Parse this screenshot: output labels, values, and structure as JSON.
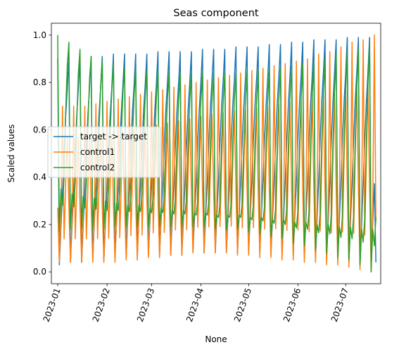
{
  "chart_data": {
    "type": "line",
    "title": "Seas component",
    "xlabel": "None",
    "ylabel": "Scaled values",
    "xlim": [
      "2022-12-28",
      "2023-07-23"
    ],
    "ylim": [
      -0.05,
      1.05
    ],
    "x_ticks": [
      "2023-01",
      "2023-02",
      "2023-03",
      "2023-04",
      "2023-05",
      "2023-06",
      "2023-07"
    ],
    "x_tick_dates": [
      "2023-01-01",
      "2023-02-01",
      "2023-03-01",
      "2023-04-01",
      "2023-05-01",
      "2023-06-01",
      "2023-07-01"
    ],
    "y_ticks": [
      "0.0",
      "0.2",
      "0.4",
      "0.6",
      "0.8",
      "1.0"
    ],
    "y_tick_values": [
      0.0,
      0.2,
      0.4,
      0.6,
      0.8,
      1.0
    ],
    "grid": false,
    "legend_position": "center-left",
    "x_start": "2023-01-01",
    "x_end": "2023-07-20",
    "period_days": 7,
    "series": [
      {
        "name": "target -> target",
        "color": "#1f77b4",
        "peaks": [
          0.9,
          0.91,
          0.91,
          0.91,
          0.91,
          0.92,
          0.92,
          0.92,
          0.92,
          0.93,
          0.93,
          0.93,
          0.93,
          0.94,
          0.94,
          0.94,
          0.95,
          0.95,
          0.95,
          0.96,
          0.96,
          0.97,
          0.97,
          0.98,
          0.98,
          0.98,
          0.99,
          0.99,
          0.99
        ],
        "troughs": [
          0.03,
          0.04,
          0.04,
          0.05,
          0.05,
          0.06,
          0.06,
          0.07,
          0.07,
          0.07,
          0.07,
          0.07,
          0.08,
          0.08,
          0.08,
          0.08,
          0.08,
          0.08,
          0.08,
          0.07,
          0.07,
          0.07,
          0.06,
          0.06,
          0.05,
          0.05,
          0.04,
          0.03,
          0.04
        ],
        "end_value": 0.04
      },
      {
        "name": "control1",
        "color": "#ff7f0e",
        "peaks": [
          0.7,
          0.7,
          0.7,
          0.71,
          0.72,
          0.73,
          0.74,
          0.75,
          0.76,
          0.77,
          0.78,
          0.79,
          0.8,
          0.81,
          0.82,
          0.83,
          0.84,
          0.85,
          0.86,
          0.87,
          0.88,
          0.89,
          0.9,
          0.92,
          0.93,
          0.95,
          0.97,
          0.98,
          1.0
        ],
        "troughs": [
          0.04,
          0.04,
          0.04,
          0.04,
          0.04,
          0.04,
          0.05,
          0.05,
          0.06,
          0.06,
          0.07,
          0.07,
          0.08,
          0.08,
          0.08,
          0.08,
          0.07,
          0.07,
          0.06,
          0.06,
          0.05,
          0.05,
          0.04,
          0.04,
          0.03,
          0.03,
          0.02,
          0.01,
          0.0
        ],
        "end_value": 0.22
      },
      {
        "name": "control2",
        "color": "#2ca02c",
        "peaks": [
          1.0,
          0.97,
          0.94,
          0.91,
          0.89,
          0.88,
          0.86,
          0.86,
          0.85,
          0.85,
          0.84,
          0.84,
          0.84,
          0.84,
          0.84,
          0.84,
          0.84,
          0.85,
          0.85,
          0.86,
          0.86,
          0.87,
          0.88,
          0.89,
          0.9,
          0.92,
          0.93,
          0.94,
          0.96
        ],
        "troughs": [
          0.17,
          0.18,
          0.18,
          0.18,
          0.18,
          0.19,
          0.19,
          0.19,
          0.19,
          0.19,
          0.19,
          0.19,
          0.19,
          0.19,
          0.18,
          0.18,
          0.18,
          0.17,
          0.16,
          0.15,
          0.14,
          0.12,
          0.11,
          0.09,
          0.08,
          0.06,
          0.05,
          0.03,
          0.0
        ],
        "mid_values": [
          0.35,
          0.33,
          0.32,
          0.31,
          0.3,
          0.29,
          0.28,
          0.28,
          0.27,
          0.27,
          0.26,
          0.26,
          0.25,
          0.25,
          0.24,
          0.24,
          0.24,
          0.23,
          0.23,
          0.22,
          0.22,
          0.21,
          0.21,
          0.2,
          0.2,
          0.19,
          0.19,
          0.18,
          0.18
        ],
        "end_value": 0.23
      }
    ]
  }
}
